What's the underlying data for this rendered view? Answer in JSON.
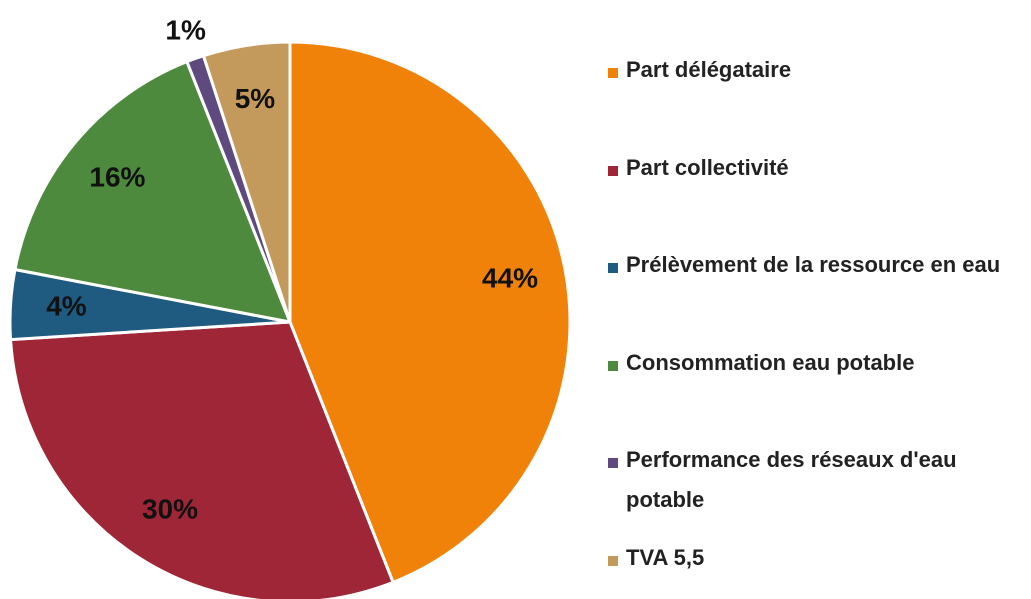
{
  "chart_data": {
    "type": "pie",
    "categories": [
      "Part délégataire",
      "Part collectivité",
      "Prélèvement de la ressource en eau",
      "Consommation eau potable",
      "Performance des réseaux d'eau potable",
      "TVA 5,5"
    ],
    "values": [
      44,
      30,
      4,
      16,
      1,
      5
    ],
    "value_labels": [
      "44%",
      "30%",
      "4%",
      "16%",
      "1%",
      "5%"
    ],
    "colors": [
      "#f0820a",
      "#9e2637",
      "#1f5a80",
      "#4e8a3e",
      "#5e4a7e",
      "#c49a5c"
    ],
    "legend": "right"
  }
}
